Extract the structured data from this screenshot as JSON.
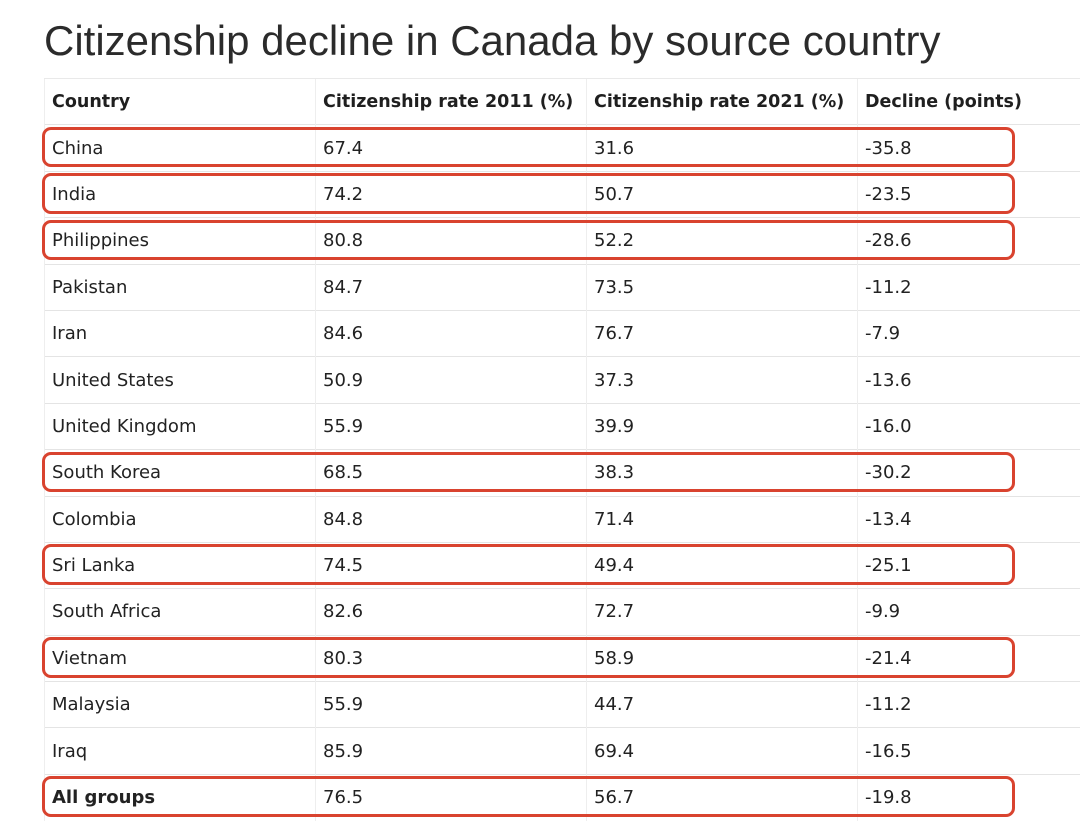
{
  "title": "Citizenship decline in Canada by source country",
  "table": {
    "headers": [
      "Country",
      "Citizenship rate 2011 (%)",
      "Citizenship rate 2021 (%)",
      "Decline (points)"
    ],
    "rows": [
      {
        "country": "China",
        "rate_2011": "67.4",
        "rate_2021": "31.6",
        "decline": "-35.8",
        "highlighted": true
      },
      {
        "country": "India",
        "rate_2011": "74.2",
        "rate_2021": "50.7",
        "decline": "-23.5",
        "highlighted": true
      },
      {
        "country": "Philippines",
        "rate_2011": "80.8",
        "rate_2021": "52.2",
        "decline": "-28.6",
        "highlighted": true
      },
      {
        "country": "Pakistan",
        "rate_2011": "84.7",
        "rate_2021": "73.5",
        "decline": "-11.2",
        "highlighted": false
      },
      {
        "country": "Iran",
        "rate_2011": "84.6",
        "rate_2021": "76.7",
        "decline": "-7.9",
        "highlighted": false
      },
      {
        "country": "United States",
        "rate_2011": "50.9",
        "rate_2021": "37.3",
        "decline": "-13.6",
        "highlighted": false
      },
      {
        "country": "United Kingdom",
        "rate_2011": "55.9",
        "rate_2021": "39.9",
        "decline": "-16.0",
        "highlighted": false
      },
      {
        "country": "South Korea",
        "rate_2011": "68.5",
        "rate_2021": "38.3",
        "decline": "-30.2",
        "highlighted": true
      },
      {
        "country": "Colombia",
        "rate_2011": "84.8",
        "rate_2021": "71.4",
        "decline": "-13.4",
        "highlighted": false
      },
      {
        "country": "Sri Lanka",
        "rate_2011": "74.5",
        "rate_2021": "49.4",
        "decline": "-25.1",
        "highlighted": true
      },
      {
        "country": "South Africa",
        "rate_2011": "82.6",
        "rate_2021": "72.7",
        "decline": "-9.9",
        "highlighted": false
      },
      {
        "country": "Vietnam",
        "rate_2011": "80.3",
        "rate_2021": "58.9",
        "decline": "-21.4",
        "highlighted": true
      },
      {
        "country": "Malaysia",
        "rate_2011": "55.9",
        "rate_2021": "44.7",
        "decline": "-11.2",
        "highlighted": false
      },
      {
        "country": "Iraq",
        "rate_2011": "85.9",
        "rate_2021": "69.4",
        "decline": "-16.5",
        "highlighted": false
      },
      {
        "country": "All groups",
        "rate_2011": "76.5",
        "rate_2021": "56.7",
        "decline": "-19.8",
        "highlighted": true
      }
    ]
  },
  "colors": {
    "highlight_outline": "#d9432f",
    "title_text": "#2b2b2b",
    "grid_line": "#e4e4e4"
  }
}
